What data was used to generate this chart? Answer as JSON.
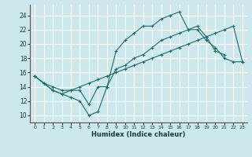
{
  "xlabel": "Humidex (Indice chaleur)",
  "xlim": [
    -0.5,
    23.5
  ],
  "ylim": [
    9,
    25.5
  ],
  "yticks": [
    10,
    12,
    14,
    16,
    18,
    20,
    22,
    24
  ],
  "xticks": [
    0,
    1,
    2,
    3,
    4,
    5,
    6,
    7,
    8,
    9,
    10,
    11,
    12,
    13,
    14,
    15,
    16,
    17,
    18,
    19,
    20,
    21,
    22,
    23
  ],
  "bg_color": "#cce8ec",
  "grid_color": "#ffffff",
  "line_color": "#1a6e6a",
  "line1_x": [
    0,
    1,
    2,
    3,
    4,
    5,
    6,
    7,
    8,
    9,
    10,
    11,
    12,
    13,
    14,
    15,
    16,
    17,
    18,
    19,
    20,
    21
  ],
  "line1_y": [
    15.5,
    14.5,
    13.5,
    13.0,
    12.5,
    12.0,
    10.0,
    10.5,
    14.0,
    19.0,
    20.5,
    21.5,
    22.5,
    22.5,
    23.5,
    24.0,
    24.5,
    22.0,
    22.5,
    21.0,
    19.0,
    18.5
  ],
  "line2_x": [
    0,
    1,
    2,
    3,
    4,
    5,
    6,
    7,
    8,
    9,
    10,
    11,
    12,
    13,
    14,
    15,
    16,
    17,
    18,
    19,
    20,
    21,
    22,
    23
  ],
  "line2_y": [
    15.5,
    14.5,
    13.5,
    13.0,
    13.5,
    13.5,
    11.5,
    14.0,
    14.0,
    16.5,
    17.0,
    18.0,
    18.5,
    19.5,
    20.5,
    21.0,
    21.5,
    22.0,
    22.0,
    20.5,
    19.5,
    18.0,
    17.5,
    17.5
  ],
  "line3_x": [
    0,
    1,
    2,
    3,
    4,
    5,
    6,
    7,
    8,
    9,
    10,
    11,
    12,
    13,
    14,
    15,
    16,
    17,
    18,
    19,
    20,
    21,
    22,
    23
  ],
  "line3_y": [
    15.5,
    14.5,
    14.0,
    13.5,
    13.5,
    14.0,
    14.5,
    15.0,
    15.5,
    16.0,
    16.5,
    17.0,
    17.5,
    18.0,
    18.5,
    19.0,
    19.5,
    20.0,
    20.5,
    21.0,
    21.5,
    22.0,
    22.5,
    17.5
  ]
}
